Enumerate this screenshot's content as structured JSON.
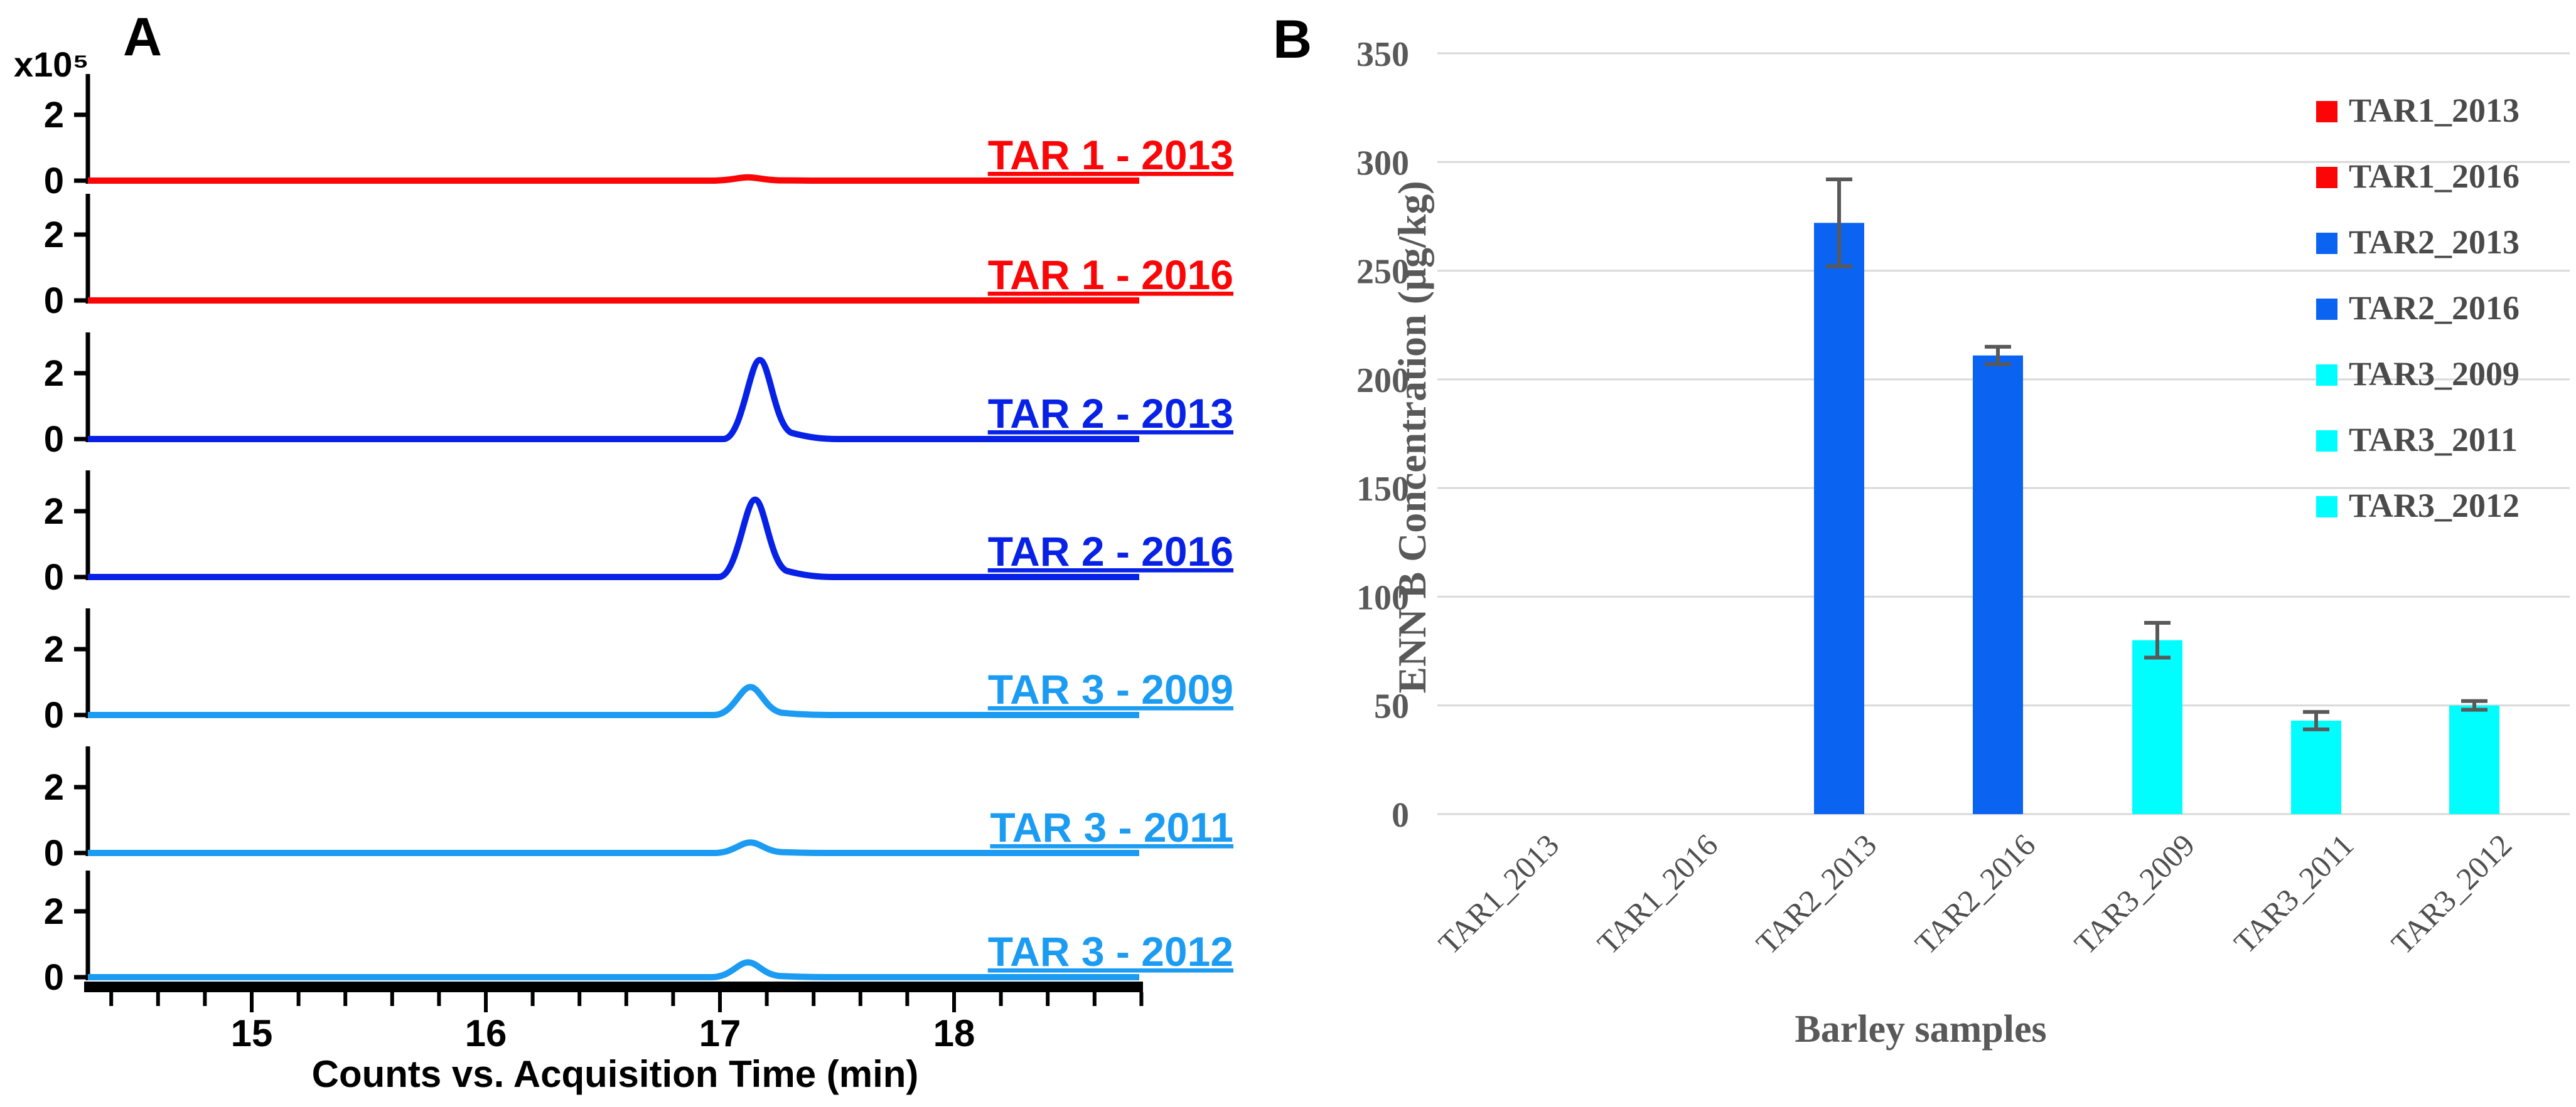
{
  "figure": {
    "panel_a": {
      "panel_letter": "A",
      "scale_label": "x10⁵",
      "x_axis_title": "Counts vs. Acquisition Time (min)",
      "y_tick_labels": [
        "2",
        "0"
      ]
    },
    "panel_b": {
      "panel_letter": "B",
      "y_axis_title": "ENN B Concentration (µg/kg)",
      "x_axis_title": "Barley samples"
    }
  },
  "chart_data": [
    {
      "type": "line",
      "subtype": "stacked-chromatograms",
      "panel": "A",
      "xlabel": "Counts vs. Acquisition Time (min)",
      "x_range_min": [
        14.3,
        18.8
      ],
      "x_ticks": [
        15,
        16,
        17,
        18
      ],
      "x_minor_tick_step": 0.2,
      "y_scale_label": "x10⁵",
      "y_ticks_each_trace": [
        2,
        0
      ],
      "traces": [
        {
          "name": "TAR 1 - 2013",
          "color": "#FB0507",
          "peak_time_min": 17.12,
          "peak_height_x1e5": 0.1
        },
        {
          "name": "TAR 1 - 2016",
          "color": "#FB0507",
          "peak_time_min": null,
          "peak_height_x1e5": 0.0
        },
        {
          "name": "TAR 2 - 2013",
          "color": "#0721E6",
          "peak_time_min": 17.17,
          "peak_height_x1e5": 2.4
        },
        {
          "name": "TAR 2 - 2016",
          "color": "#0721E6",
          "peak_time_min": 17.15,
          "peak_height_x1e5": 2.35
        },
        {
          "name": "TAR 3 - 2009",
          "color": "#1B9CF2",
          "peak_time_min": 17.13,
          "peak_height_x1e5": 0.85
        },
        {
          "name": "TAR 3 - 2011",
          "color": "#1B9CF2",
          "peak_time_min": 17.13,
          "peak_height_x1e5": 0.32
        },
        {
          "name": "TAR 3 - 2012",
          "color": "#1B9CF2",
          "peak_time_min": 17.12,
          "peak_height_x1e5": 0.45
        }
      ]
    },
    {
      "type": "bar",
      "panel": "B",
      "categories": [
        "TAR1_2013",
        "TAR1_2016",
        "TAR2_2013",
        "TAR2_2016",
        "TAR3_2009",
        "TAR3_2011",
        "TAR3_2012"
      ],
      "values": [
        0,
        0,
        272,
        211,
        80,
        43,
        50
      ],
      "errors": [
        0,
        0,
        20,
        4,
        8,
        4,
        2
      ],
      "bar_colors": [
        "#FE0000",
        "#FE0000",
        "#0B63F1",
        "#0B63F1",
        "#00FEFE",
        "#00FEFE",
        "#00FEFE"
      ],
      "ylabel": "ENN B Concentration (µg/kg)",
      "xlabel": "Barley samples",
      "ylim": [
        0,
        350
      ],
      "ytick_step": 50,
      "y_tick_labels": [
        "350",
        "300",
        "250",
        "200",
        "150",
        "100",
        "50",
        "0"
      ],
      "grid": true,
      "gridline_color": "#D9D9D9",
      "error_bar_color": "#595959",
      "legend_position": "upper right",
      "legend": [
        {
          "label": "TAR1_2013",
          "color": "#FB0507"
        },
        {
          "label": "TAR1_2016",
          "color": "#FB0507"
        },
        {
          "label": "TAR2_2013",
          "color": "#0B63F1"
        },
        {
          "label": "TAR2_2016",
          "color": "#0B63F1"
        },
        {
          "label": "TAR3_2009",
          "color": "#00FEFE"
        },
        {
          "label": "TAR3_2011",
          "color": "#00FEFE"
        },
        {
          "label": "TAR3_2012",
          "color": "#00FEFE"
        }
      ]
    }
  ]
}
